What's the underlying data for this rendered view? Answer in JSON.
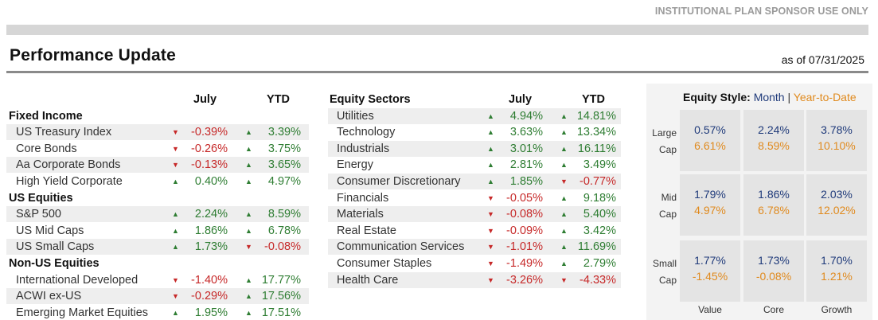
{
  "header": {
    "top_note": "INSTITUTIONAL PLAN SPONSOR USE ONLY",
    "title": "Performance Update",
    "as_of": "as of 07/31/2025"
  },
  "colors": {
    "positive": "#2e7d32",
    "negative": "#c62828",
    "month": "#1f3a7a",
    "ytd": "#e08a1e"
  },
  "left_table": {
    "col_july": "July",
    "col_ytd": "YTD",
    "rows": [
      {
        "type": "header",
        "name": "Fixed Income"
      },
      {
        "type": "data",
        "name": "US Treasury Index",
        "july": "-0.39%",
        "july_dir": "down",
        "ytd": "3.39%",
        "ytd_dir": "up"
      },
      {
        "type": "data",
        "name": "Core Bonds",
        "july": "-0.26%",
        "july_dir": "down",
        "ytd": "3.75%",
        "ytd_dir": "up"
      },
      {
        "type": "data",
        "name": "Aa Corporate Bonds",
        "july": "-0.13%",
        "july_dir": "down",
        "ytd": "3.65%",
        "ytd_dir": "up"
      },
      {
        "type": "data",
        "name": "High Yield Corporate",
        "july": "0.40%",
        "july_dir": "up",
        "ytd": "4.97%",
        "ytd_dir": "up"
      },
      {
        "type": "header",
        "name": "US Equities"
      },
      {
        "type": "data",
        "name": "S&P 500",
        "july": "2.24%",
        "july_dir": "up",
        "ytd": "8.59%",
        "ytd_dir": "up"
      },
      {
        "type": "data",
        "name": "US Mid Caps",
        "july": "1.86%",
        "july_dir": "up",
        "ytd": "6.78%",
        "ytd_dir": "up"
      },
      {
        "type": "data",
        "name": "US Small Caps",
        "july": "1.73%",
        "july_dir": "up",
        "ytd": "-0.08%",
        "ytd_dir": "down"
      },
      {
        "type": "header",
        "name": "Non-US Equities"
      },
      {
        "type": "data",
        "name": "International Developed",
        "july": "-1.40%",
        "july_dir": "down",
        "ytd": "17.77%",
        "ytd_dir": "up"
      },
      {
        "type": "data",
        "name": "ACWI ex-US",
        "july": "-0.29%",
        "july_dir": "down",
        "ytd": "17.56%",
        "ytd_dir": "up"
      },
      {
        "type": "data",
        "name": "Emerging Market Equities",
        "july": "1.95%",
        "july_dir": "up",
        "ytd": "17.51%",
        "ytd_dir": "up"
      }
    ]
  },
  "sector_table": {
    "title": "Equity Sectors",
    "col_july": "July",
    "col_ytd": "YTD",
    "rows": [
      {
        "name": "Utilities",
        "july": "4.94%",
        "july_dir": "up",
        "ytd": "14.81%",
        "ytd_dir": "up"
      },
      {
        "name": "Technology",
        "july": "3.63%",
        "july_dir": "up",
        "ytd": "13.34%",
        "ytd_dir": "up"
      },
      {
        "name": "Industrials",
        "july": "3.01%",
        "july_dir": "up",
        "ytd": "16.11%",
        "ytd_dir": "up"
      },
      {
        "name": "Energy",
        "july": "2.81%",
        "july_dir": "up",
        "ytd": "3.49%",
        "ytd_dir": "up"
      },
      {
        "name": "Consumer Discretionary",
        "july": "1.85%",
        "july_dir": "up",
        "ytd": "-0.77%",
        "ytd_dir": "down"
      },
      {
        "name": "Financials",
        "july": "-0.05%",
        "july_dir": "down",
        "ytd": "9.18%",
        "ytd_dir": "up"
      },
      {
        "name": "Materials",
        "july": "-0.08%",
        "july_dir": "down",
        "ytd": "5.40%",
        "ytd_dir": "up"
      },
      {
        "name": "Real Estate",
        "july": "-0.09%",
        "july_dir": "down",
        "ytd": "3.42%",
        "ytd_dir": "up"
      },
      {
        "name": "Communication Services",
        "july": "-1.01%",
        "july_dir": "down",
        "ytd": "11.69%",
        "ytd_dir": "up"
      },
      {
        "name": "Consumer Staples",
        "july": "-1.49%",
        "july_dir": "down",
        "ytd": "2.79%",
        "ytd_dir": "up"
      },
      {
        "name": "Health Care",
        "july": "-3.26%",
        "july_dir": "down",
        "ytd": "-4.33%",
        "ytd_dir": "down"
      }
    ]
  },
  "equity_style": {
    "label": "Equity Style:",
    "month_label": "Month",
    "separator": "|",
    "ytd_label": "Year-to-Date",
    "row_labels": [
      [
        "Large",
        "Cap"
      ],
      [
        "Mid",
        "Cap"
      ],
      [
        "Small",
        "Cap"
      ]
    ],
    "col_labels": [
      "Value",
      "Core",
      "Growth"
    ],
    "cells": [
      [
        {
          "month": "0.57%",
          "ytd": "6.61%"
        },
        {
          "month": "2.24%",
          "ytd": "8.59%"
        },
        {
          "month": "3.78%",
          "ytd": "10.10%"
        }
      ],
      [
        {
          "month": "1.79%",
          "ytd": "4.97%"
        },
        {
          "month": "1.86%",
          "ytd": "6.78%"
        },
        {
          "month": "2.03%",
          "ytd": "12.02%"
        }
      ],
      [
        {
          "month": "1.77%",
          "ytd": "-1.45%"
        },
        {
          "month": "1.73%",
          "ytd": "-0.08%"
        },
        {
          "month": "1.70%",
          "ytd": "1.21%"
        }
      ]
    ]
  }
}
